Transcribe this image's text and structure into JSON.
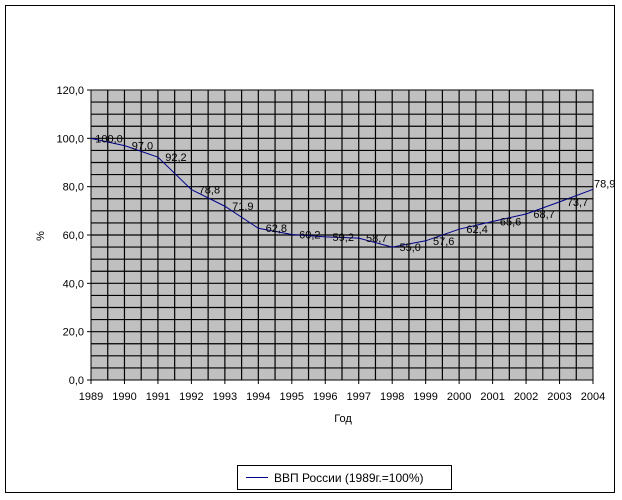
{
  "chart_data": {
    "type": "line",
    "title": "",
    "xlabel": "Год",
    "ylabel": "%",
    "ylim": [
      0,
      120
    ],
    "yticks": [
      "0,0",
      "20,0",
      "40,0",
      "60,0",
      "80,0",
      "100,0",
      "120,0"
    ],
    "categories": [
      "1989",
      "1990",
      "1991",
      "1992",
      "1993",
      "1994",
      "1995",
      "1996",
      "1997",
      "1998",
      "1999",
      "2000",
      "2001",
      "2002",
      "2003",
      "2004"
    ],
    "series": [
      {
        "name": "ВВП России (1989г.=100%)",
        "color": "#00008b",
        "values": [
          100.0,
          97.0,
          92.2,
          78.8,
          71.9,
          62.8,
          60.2,
          59.2,
          58.7,
          55.0,
          57.6,
          62.4,
          65.6,
          68.7,
          73.7,
          78.9
        ],
        "labels": [
          "100,0",
          "97,0",
          "92,2",
          "78,8",
          "71,9",
          "62,8",
          "60,2",
          "59,2",
          "58,7",
          "55,0",
          "57,6",
          "62,4",
          "65,6",
          "68,7",
          "73,7",
          "78,9"
        ]
      }
    ],
    "grid": true,
    "plot_background": "#c0c0c0",
    "legend_position": "bottom"
  }
}
